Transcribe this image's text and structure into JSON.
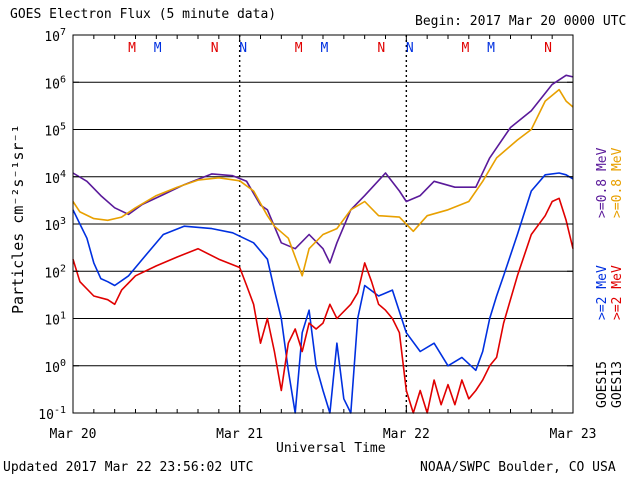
{
  "header": {
    "title": "GOES Electron Flux (5 minute data)",
    "begin": "Begin: 2017 Mar 20 0000 UTC"
  },
  "footer": {
    "updated": "Updated 2017 Mar 22 23:56:02 UTC",
    "credit": "NOAA/SWPC Boulder, CO USA"
  },
  "labels": {
    "ylabel": "Particles cm⁻²s⁻¹sr⁻¹",
    "xlabel": "Universal Time",
    "right": [
      {
        "text": ">=0.8 MeV",
        "color": "#e8a000"
      },
      {
        "text": ">=0.8 MeV",
        "color": "#5a1a9a"
      },
      {
        "text": ">=2 MeV",
        "color": "#e00000"
      },
      {
        "text": ">=2 MeV",
        "color": "#0030e0"
      },
      {
        "text": "GOES13",
        "color": "#000000"
      },
      {
        "text": "GOES15",
        "color": "#000000"
      }
    ]
  },
  "colors": {
    "goes13_high": "#e8a000",
    "goes15_high": "#5a1a9a",
    "goes13_low": "#e00000",
    "goes15_low": "#0030e0",
    "grid": "#000000",
    "threshold": "#000000"
  },
  "chart_data": {
    "type": "line",
    "xlabel": "Universal Time",
    "ylabel": "Particles cm⁻²s⁻¹sr⁻¹",
    "y_scale": "log",
    "ylim": [
      0.1,
      10000000
    ],
    "y_ticks": [
      {
        "base": "10",
        "exp": "-1",
        "value": 0.1
      },
      {
        "base": "10",
        "exp": "0",
        "value": 1
      },
      {
        "base": "10",
        "exp": "1",
        "value": 10
      },
      {
        "base": "10",
        "exp": "2",
        "value": 100
      },
      {
        "base": "10",
        "exp": "3",
        "value": 1000
      },
      {
        "base": "10",
        "exp": "4",
        "value": 10000
      },
      {
        "base": "10",
        "exp": "5",
        "value": 100000
      },
      {
        "base": "10",
        "exp": "6",
        "value": 1000000
      },
      {
        "base": "10",
        "exp": "7",
        "value": 10000000
      }
    ],
    "x_unit": "hours since 2017 Mar 20 0000 UTC",
    "xlim": [
      0,
      72
    ],
    "x_ticks": [
      {
        "label": "Mar 20",
        "hour": 0
      },
      {
        "label": "Mar 21",
        "hour": 24
      },
      {
        "label": "Mar 22",
        "hour": 48
      },
      {
        "label": "Mar 23",
        "hour": 72
      }
    ],
    "threshold": 1000,
    "grid": true,
    "noon_markers": [
      {
        "label": "M",
        "hour": 8.5,
        "color": "#e00000"
      },
      {
        "label": "M",
        "hour": 12.2,
        "color": "#0030e0"
      },
      {
        "label": "N",
        "hour": 20.4,
        "color": "#e00000"
      },
      {
        "label": "N",
        "hour": 24.5,
        "color": "#0030e0"
      },
      {
        "label": "M",
        "hour": 32.5,
        "color": "#e00000"
      },
      {
        "label": "M",
        "hour": 36.2,
        "color": "#0030e0"
      },
      {
        "label": "N",
        "hour": 44.4,
        "color": "#e00000"
      },
      {
        "label": "N",
        "hour": 48.5,
        "color": "#0030e0"
      },
      {
        "label": "M",
        "hour": 56.5,
        "color": "#e00000"
      },
      {
        "label": "M",
        "hour": 60.2,
        "color": "#0030e0"
      },
      {
        "label": "N",
        "hour": 68.4,
        "color": "#e00000"
      }
    ],
    "series": [
      {
        "name": ">=0.8 MeV GOES15",
        "color": "#5a1a9a",
        "points": [
          [
            0,
            12000
          ],
          [
            2,
            8000
          ],
          [
            4,
            4000
          ],
          [
            6,
            2200
          ],
          [
            8,
            1600
          ],
          [
            10,
            2600
          ],
          [
            13,
            4200
          ],
          [
            16,
            6800
          ],
          [
            20,
            11500
          ],
          [
            23,
            10500
          ],
          [
            25,
            8000
          ],
          [
            27,
            2500
          ],
          [
            28,
            2000
          ],
          [
            30,
            400
          ],
          [
            32,
            300
          ],
          [
            34,
            600
          ],
          [
            36,
            300
          ],
          [
            37,
            150
          ],
          [
            38,
            400
          ],
          [
            40,
            2000
          ],
          [
            42,
            4000
          ],
          [
            45,
            12000
          ],
          [
            47,
            5000
          ],
          [
            48,
            3000
          ],
          [
            50,
            4000
          ],
          [
            52,
            8000
          ],
          [
            55,
            6000
          ],
          [
            58,
            6000
          ],
          [
            60,
            25000
          ],
          [
            63,
            110000
          ],
          [
            66,
            250000
          ],
          [
            69,
            900000
          ],
          [
            71,
            1400000
          ],
          [
            72,
            1300000
          ]
        ]
      },
      {
        "name": ">=0.8 MeV GOES13",
        "color": "#e8a000",
        "points": [
          [
            0,
            3000
          ],
          [
            1,
            1800
          ],
          [
            3,
            1300
          ],
          [
            5,
            1200
          ],
          [
            7,
            1400
          ],
          [
            9,
            2200
          ],
          [
            12,
            4000
          ],
          [
            15,
            6000
          ],
          [
            18,
            8500
          ],
          [
            21,
            9500
          ],
          [
            24,
            8200
          ],
          [
            26,
            5000
          ],
          [
            28,
            1500
          ],
          [
            29,
            900
          ],
          [
            31,
            500
          ],
          [
            32,
            200
          ],
          [
            33,
            80
          ],
          [
            34,
            300
          ],
          [
            36,
            600
          ],
          [
            38,
            800
          ],
          [
            40,
            2000
          ],
          [
            42,
            3000
          ],
          [
            44,
            1500
          ],
          [
            47,
            1400
          ],
          [
            49,
            700
          ],
          [
            51,
            1500
          ],
          [
            54,
            2000
          ],
          [
            57,
            3000
          ],
          [
            59,
            8000
          ],
          [
            61,
            25000
          ],
          [
            64,
            60000
          ],
          [
            66,
            100000
          ],
          [
            68,
            400000
          ],
          [
            70,
            700000
          ],
          [
            71,
            400000
          ],
          [
            72,
            300000
          ]
        ]
      },
      {
        "name": ">=2 MeV GOES15",
        "color": "#0030e0",
        "points": [
          [
            0,
            2000
          ],
          [
            1,
            1000
          ],
          [
            2,
            500
          ],
          [
            3,
            150
          ],
          [
            4,
            70
          ],
          [
            5,
            60
          ],
          [
            6,
            50
          ],
          [
            8,
            80
          ],
          [
            10,
            180
          ],
          [
            13,
            600
          ],
          [
            16,
            900
          ],
          [
            20,
            800
          ],
          [
            23,
            650
          ],
          [
            26,
            400
          ],
          [
            28,
            180
          ],
          [
            29,
            40
          ],
          [
            30,
            10
          ],
          [
            31,
            0.8
          ],
          [
            32,
            0.1
          ],
          [
            33,
            5
          ],
          [
            34,
            15
          ],
          [
            35,
            1
          ],
          [
            36,
            0.3
          ],
          [
            37,
            0.1
          ],
          [
            38,
            3
          ],
          [
            39,
            0.2
          ],
          [
            40,
            0.1
          ],
          [
            41,
            10
          ],
          [
            42,
            50
          ],
          [
            44,
            30
          ],
          [
            46,
            40
          ],
          [
            48,
            5
          ],
          [
            50,
            2
          ],
          [
            52,
            3
          ],
          [
            54,
            1
          ],
          [
            56,
            1.5
          ],
          [
            58,
            0.8
          ],
          [
            59,
            2
          ],
          [
            60,
            10
          ],
          [
            61,
            30
          ],
          [
            62,
            80
          ],
          [
            64,
            600
          ],
          [
            66,
            5000
          ],
          [
            68,
            11000
          ],
          [
            70,
            12000
          ],
          [
            71,
            11000
          ],
          [
            72,
            9000
          ]
        ]
      },
      {
        "name": ">=2 MeV GOES13",
        "color": "#e00000",
        "points": [
          [
            0,
            180
          ],
          [
            1,
            60
          ],
          [
            3,
            30
          ],
          [
            5,
            25
          ],
          [
            6,
            20
          ],
          [
            7,
            40
          ],
          [
            9,
            80
          ],
          [
            12,
            130
          ],
          [
            15,
            200
          ],
          [
            18,
            300
          ],
          [
            21,
            180
          ],
          [
            24,
            120
          ],
          [
            25,
            50
          ],
          [
            26,
            20
          ],
          [
            27,
            3
          ],
          [
            28,
            10
          ],
          [
            29,
            2
          ],
          [
            30,
            0.3
          ],
          [
            31,
            3
          ],
          [
            32,
            6
          ],
          [
            33,
            2
          ],
          [
            34,
            8
          ],
          [
            35,
            6
          ],
          [
            36,
            8
          ],
          [
            37,
            20
          ],
          [
            38,
            10
          ],
          [
            40,
            20
          ],
          [
            41,
            35
          ],
          [
            42,
            150
          ],
          [
            43,
            60
          ],
          [
            44,
            20
          ],
          [
            45,
            15
          ],
          [
            46,
            10
          ],
          [
            47,
            5
          ],
          [
            48,
            0.3
          ],
          [
            49,
            0.1
          ],
          [
            50,
            0.3
          ],
          [
            51,
            0.1
          ],
          [
            52,
            0.5
          ],
          [
            53,
            0.15
          ],
          [
            54,
            0.4
          ],
          [
            55,
            0.15
          ],
          [
            56,
            0.5
          ],
          [
            57,
            0.2
          ],
          [
            58,
            0.3
          ],
          [
            59,
            0.5
          ],
          [
            60,
            1
          ],
          [
            61,
            1.5
          ],
          [
            62,
            8
          ],
          [
            64,
            80
          ],
          [
            66,
            600
          ],
          [
            68,
            1500
          ],
          [
            69,
            3000
          ],
          [
            70,
            3500
          ],
          [
            71,
            1200
          ],
          [
            72,
            300
          ]
        ]
      }
    ]
  }
}
